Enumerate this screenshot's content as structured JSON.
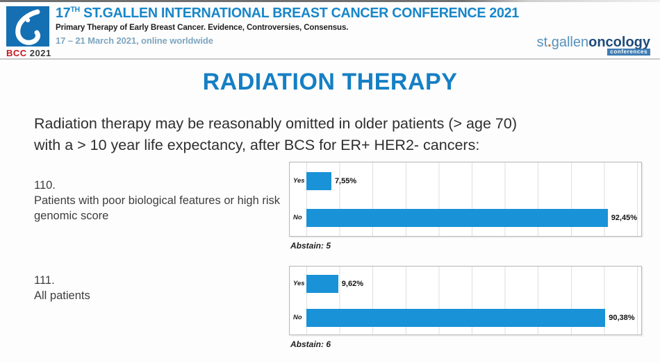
{
  "header": {
    "badge": {
      "bcc": "BCC",
      "year": "2021"
    },
    "title_num": "17",
    "title_sup": "TH",
    "title_rest": " ST.GALLEN INTERNATIONAL BREAST CANCER CONFERENCE 2021",
    "subtitle": "Primary Therapy of Early Breast Cancer. Evidence, Controversies, Consensus.",
    "date_line": "17 – 21 March 2021, online worldwide",
    "logo_right": {
      "part1": "st",
      "dot": ".",
      "part2": "gallen",
      "part3": "oncology",
      "badge": "conferences"
    }
  },
  "page_title": "RADIATION THERAPY",
  "question": {
    "line1": "Radiation therapy may be reasonably omitted in older patients (> age 70)",
    "line2": "with a > 10 year life expectancy, after BCS for ER+ HER2- cancers:"
  },
  "items": [
    {
      "number": "110.",
      "label": "Patients with poor biological features or high risk genomic score"
    },
    {
      "number": "111.",
      "label": "All patients"
    }
  ],
  "chart_data": [
    {
      "type": "bar",
      "orientation": "horizontal",
      "categories": [
        "Yes",
        "No"
      ],
      "values": [
        7.55,
        92.45
      ],
      "value_labels": [
        "7,55%",
        "92,45%"
      ],
      "xlim": [
        0,
        100
      ],
      "grid_step_percent": 10,
      "grid": true,
      "bar_color": "#1992d8",
      "abstain_label": "Abstain: 5"
    },
    {
      "type": "bar",
      "orientation": "horizontal",
      "categories": [
        "Yes",
        "No"
      ],
      "values": [
        9.62,
        90.38
      ],
      "value_labels": [
        "9,62%",
        "90,38%"
      ],
      "xlim": [
        0,
        100
      ],
      "grid_step_percent": 10,
      "grid": true,
      "bar_color": "#1992d8",
      "abstain_label": "Abstain: 6"
    }
  ],
  "colors": {
    "accent_blue": "#1886c9",
    "title_blue": "#157fc4",
    "bar_blue": "#1992d8",
    "logo_box_blue": "#156fb3",
    "bcc_red": "#c5161d",
    "date_blue": "#7ea6c0",
    "oncology_dark_blue": "#1e4b7a",
    "orange_dot": "#d2691e"
  }
}
